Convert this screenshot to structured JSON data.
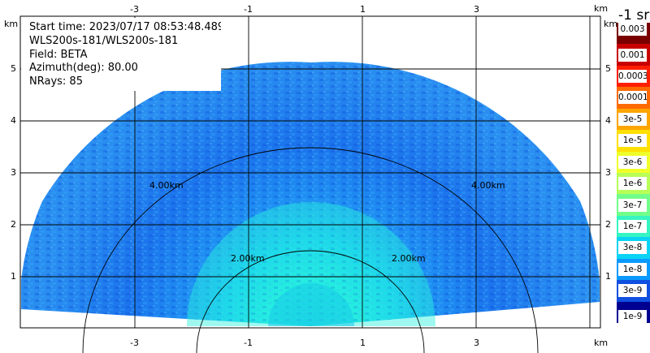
{
  "header": {
    "start_time": "Start time: 2023/07/17 08:53:48.489",
    "instrument": "WLS200s-181/WLS200s-181",
    "field": "Field: BETA",
    "azimuth": "Azimuth(deg): 80.00",
    "nrays": "NRays: 85"
  },
  "axes": {
    "x_ticks": [
      "-3",
      "-1",
      "1",
      "3"
    ],
    "y_ticks": [
      "5",
      "4",
      "3",
      "2",
      "1"
    ],
    "unit_label": "km"
  },
  "range_rings": {
    "inner": "2.00km",
    "outer": "4.00km"
  },
  "colorbar": {
    "units": "-1 sr",
    "labels": [
      "0.003",
      "0.001",
      "0.0003",
      "0.0001",
      "3e-5",
      "1e-5",
      "3e-6",
      "1e-6",
      "3e-7",
      "1e-7",
      "3e-8",
      "1e-8",
      "3e-9",
      "1e-9"
    ],
    "colors": [
      "#7a0000",
      "#c80000",
      "#ff1f00",
      "#ff6a00",
      "#ffa500",
      "#ffe000",
      "#f0ff2a",
      "#b8ff58",
      "#72ff8a",
      "#35f5c2",
      "#0ad3f5",
      "#0a9aff",
      "#1050e0",
      "#000090"
    ]
  }
}
